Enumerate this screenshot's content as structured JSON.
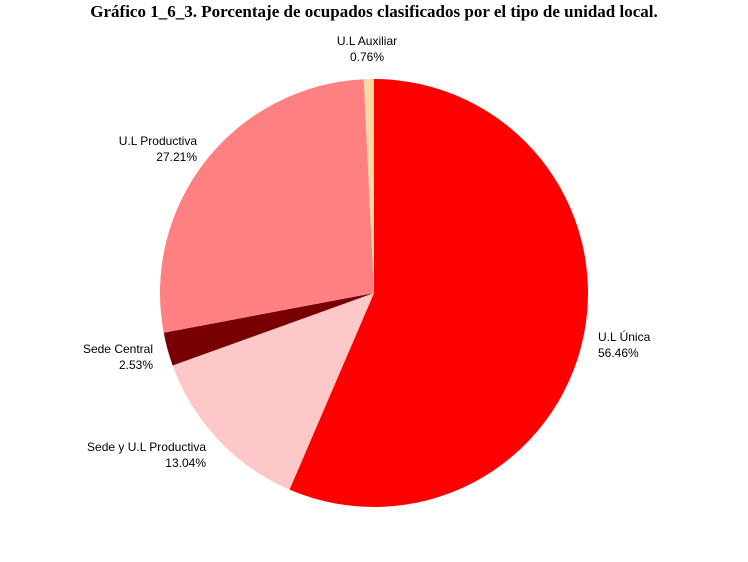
{
  "chart_data": {
    "type": "pie",
    "title": "Gráfico 1_6_3. Porcentaje de ocupados clasificados por el tipo de unidad local.",
    "unit": "%",
    "slices": [
      {
        "label": "U.L Única",
        "value": 56.46,
        "display": "56.46%",
        "color": "#ff0000"
      },
      {
        "label": "Sede y U.L Productiva",
        "value": 13.04,
        "display": "13.04%",
        "color": "#ffc8c8"
      },
      {
        "label": "Sede Central",
        "value": 2.53,
        "display": "2.53%",
        "color": "#780000"
      },
      {
        "label": "U.L Productiva",
        "value": 27.21,
        "display": "27.21%",
        "color": "#ff8080"
      },
      {
        "label": "U.L Auxiliar",
        "value": 0.76,
        "display": "0.76%",
        "color": "#ffd8a0"
      }
    ]
  }
}
